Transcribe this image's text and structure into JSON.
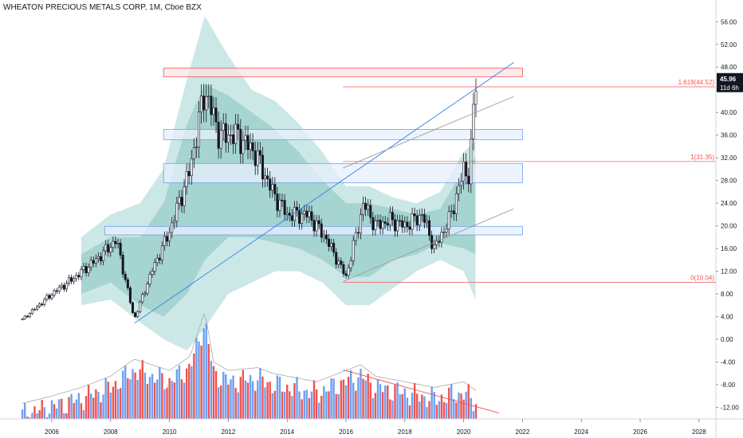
{
  "title": "WHEATON PRECIOUS METALS CORP, 1M, Cboe BZX",
  "colors": {
    "up": "#ffffff",
    "down": "#131722",
    "wick": "#131722",
    "band_outer": "#cce8e6",
    "band_inner": "#a6d4d0",
    "vol_up": "#6f9ff0",
    "vol_down": "#ef5350",
    "zone_red_fill": "#fce4e4",
    "zone_red_stroke": "#ef5350",
    "zone_blue_fill": "#e8f0fd",
    "zone_blue_stroke": "#6f9ff0",
    "trend_blue": "#2f80ed",
    "trend_gray": "#9e9e9e",
    "fib": "#ef5350",
    "price_label_bg": "#131722"
  },
  "chart_data": {
    "type": "candlestick",
    "y_axis_ticks": [
      "56.00",
      "52.00",
      "48.00",
      "44.00",
      "40.00",
      "36.00",
      "32.00",
      "28.00",
      "24.00",
      "20.00",
      "16.00",
      "12.00",
      "8.00",
      "4.00",
      "0.00",
      "-4.00",
      "-8.00",
      "-12.00"
    ],
    "x_axis_ticks": [
      "2006",
      "2008",
      "2010",
      "2012",
      "2014",
      "2016",
      "2018",
      "2020",
      "2022",
      "2024",
      "2026",
      "2028"
    ],
    "ylim": [
      -14.5,
      58.5
    ],
    "xlim": [
      2004.8,
      2029.6
    ],
    "current_price": "45.96",
    "countdown": "11d 6h",
    "fib_levels": [
      {
        "label": "1.618(44.52)",
        "value": 44.52
      },
      {
        "label": "1(31.35)",
        "value": 31.35
      },
      {
        "label": "0(10.04)",
        "value": 10.04
      }
    ],
    "zones": [
      {
        "color": "red",
        "y_top": 47.8,
        "y_bottom": 46.3,
        "x_start": 2009.8,
        "x_end": 2022.0
      },
      {
        "color": "blue",
        "y_top": 37.0,
        "y_bottom": 35.2,
        "x_start": 2009.8,
        "x_end": 2022.0
      },
      {
        "color": "blue",
        "y_top": 31.0,
        "y_bottom": 27.6,
        "x_start": 2009.8,
        "x_end": 2022.0
      },
      {
        "color": "blue",
        "y_top": 19.9,
        "y_bottom": 18.4,
        "x_start": 2007.8,
        "x_end": 2022.0
      }
    ],
    "trendlines": [
      {
        "color": "blue",
        "points": [
          [
            2008.8,
            2.8
          ],
          [
            2021.7,
            48.8
          ]
        ]
      },
      {
        "color": "gray",
        "points": [
          [
            2015.9,
            30.2
          ],
          [
            2021.7,
            42.8
          ]
        ]
      },
      {
        "color": "gray",
        "points": [
          [
            2015.9,
            10.2
          ],
          [
            2021.7,
            23.0
          ]
        ]
      },
      {
        "color": "red",
        "points": [
          [
            2015.9,
            -5.4
          ],
          [
            2021.2,
            -13.0
          ]
        ]
      }
    ],
    "band_outer": {
      "x": [
        2007.0,
        2008.0,
        2009.0,
        2009.8,
        2010.6,
        2011.2,
        2012.0,
        2012.8,
        2013.6,
        2014.4,
        2015.2,
        2016.0,
        2016.8,
        2017.6,
        2018.4,
        2019.2,
        2020.0,
        2020.4
      ],
      "upper": [
        18.0,
        22.0,
        24.0,
        30.0,
        46.0,
        57.0,
        50.0,
        44.0,
        42.0,
        38.0,
        33.0,
        27.0,
        27.0,
        25.0,
        24.0,
        26.0,
        33.0,
        35.0
      ],
      "lower": [
        6.0,
        7.0,
        3.0,
        0.0,
        -2.0,
        2.0,
        8.0,
        10.0,
        12.0,
        12.0,
        10.0,
        6.0,
        6.0,
        9.0,
        12.0,
        14.0,
        12.0,
        7.0
      ]
    },
    "band_inner": {
      "x": [
        2007.0,
        2008.0,
        2009.0,
        2009.8,
        2010.6,
        2011.2,
        2012.0,
        2012.8,
        2013.6,
        2014.4,
        2015.2,
        2016.0,
        2016.8,
        2017.6,
        2018.4,
        2019.2,
        2020.0,
        2020.4
      ],
      "upper": [
        15.0,
        18.0,
        18.0,
        24.0,
        38.0,
        45.0,
        43.0,
        40.0,
        37.0,
        33.0,
        28.0,
        24.0,
        24.0,
        23.0,
        22.0,
        23.0,
        30.0,
        32.0
      ],
      "lower": [
        8.0,
        10.0,
        6.0,
        4.0,
        8.0,
        14.0,
        18.0,
        18.0,
        17.0,
        16.0,
        14.0,
        11.0,
        11.0,
        14.0,
        15.0,
        17.0,
        16.0,
        15.0
      ]
    },
    "price_path": {
      "x": [
        2005.0,
        2006.0,
        2006.8,
        2007.5,
        2008.2,
        2008.8,
        2009.4,
        2010.0,
        2010.7,
        2011.2,
        2011.7,
        2012.3,
        2012.9,
        2013.5,
        2014.0,
        2014.7,
        2015.3,
        2016.0,
        2016.6,
        2017.0,
        2017.5,
        2018.0,
        2018.6,
        2019.0,
        2019.5,
        2019.8,
        2020.0,
        2020.2,
        2020.4
      ],
      "y": [
        3.5,
        8.0,
        11.0,
        14.0,
        17.5,
        3.5,
        12.0,
        19.0,
        30.0,
        44.0,
        36.0,
        36.0,
        33.0,
        26.0,
        22.0,
        22.0,
        18.0,
        11.0,
        24.0,
        20.0,
        21.0,
        20.0,
        22.0,
        16.0,
        21.0,
        26.0,
        30.0,
        29.0,
        45.96
      ]
    },
    "volume_path": {
      "x": [
        2005.0,
        2006.0,
        2007.0,
        2008.0,
        2008.8,
        2009.4,
        2010.0,
        2010.7,
        2011.2,
        2011.5,
        2012.0,
        2013.0,
        2013.5,
        2014.0,
        2015.0,
        2016.0,
        2016.5,
        2017.0,
        2018.0,
        2019.0,
        2020.0,
        2020.4
      ],
      "y": [
        -13.3,
        -12.0,
        -10.5,
        -8.5,
        -5.5,
        -6.5,
        -7.5,
        -5.0,
        3.0,
        -6.0,
        -7.5,
        -7.0,
        -8.0,
        -8.5,
        -9.5,
        -7.5,
        -6.5,
        -8.5,
        -9.5,
        -10.5,
        -9.5,
        -11.0
      ]
    }
  }
}
